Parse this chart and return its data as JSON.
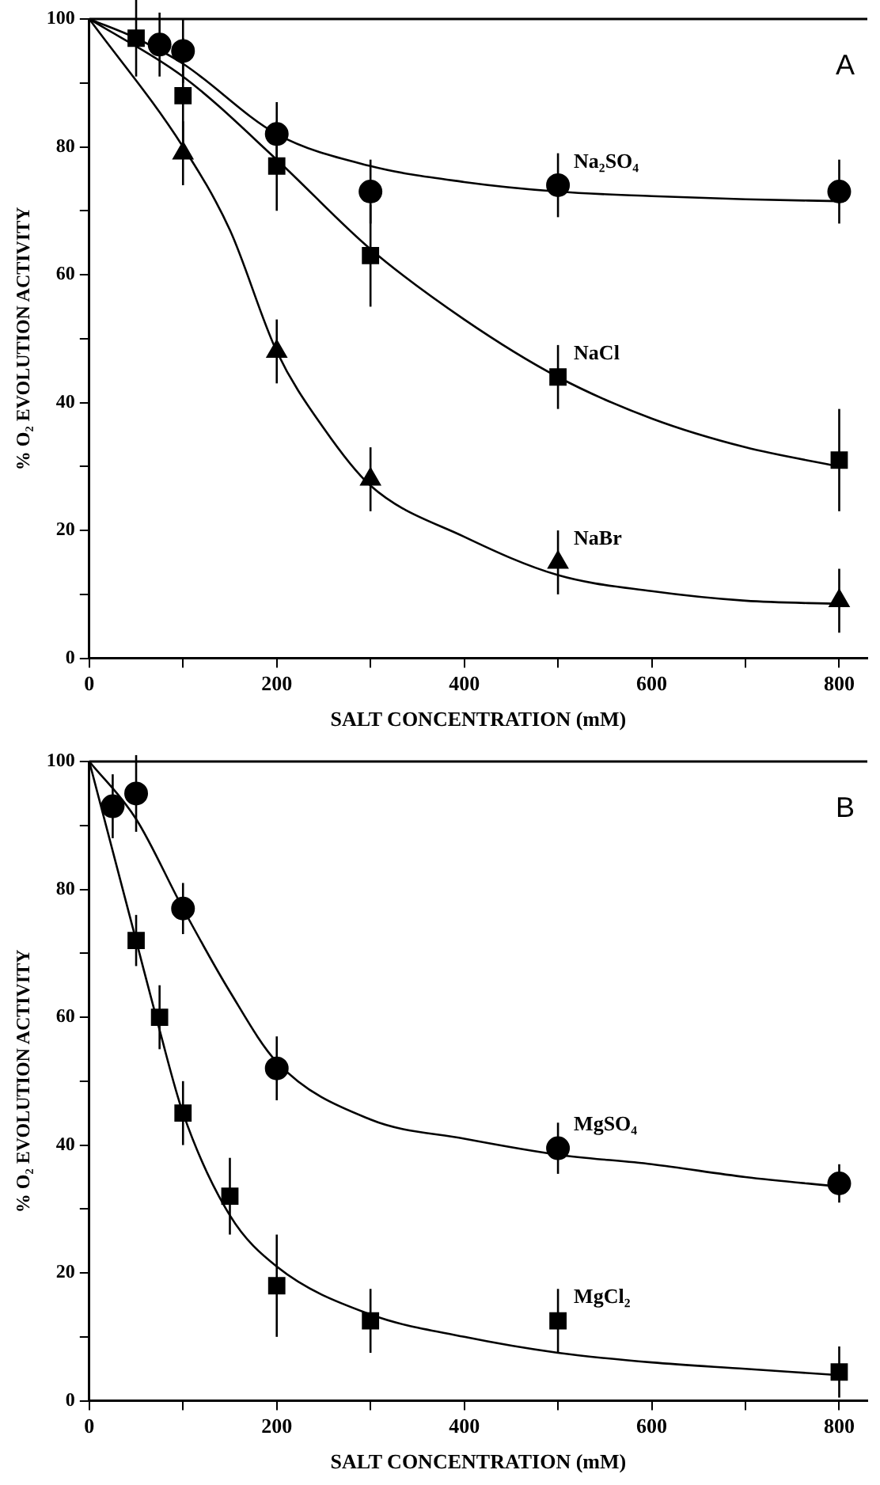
{
  "chart_data": [
    {
      "type": "scatter",
      "annotations": [
        "A"
      ],
      "xlabel": "SALT CONCENTRATION (mM)",
      "ylabel": "% O₂ EVOLUTION ACTIVITY",
      "xlim": [
        0,
        830
      ],
      "ylim": [
        0,
        100
      ],
      "xticks": [
        0,
        {
          "value": 100,
          "label": null
        },
        200,
        {
          "value": 300,
          "label": null
        },
        400,
        {
          "value": 500,
          "label": null
        },
        600,
        {
          "value": 700,
          "label": null
        },
        800
      ],
      "yticks": [
        0,
        {
          "value": 10,
          "label": null
        },
        20,
        {
          "value": 30,
          "label": null
        },
        40,
        {
          "value": 50,
          "label": null
        },
        60,
        {
          "value": 70,
          "label": null
        },
        80,
        {
          "value": 90,
          "label": null
        },
        100
      ],
      "series": [
        {
          "type": "line",
          "color": "#000000",
          "marker": "none",
          "x": [
            0,
            50,
            100,
            200,
            300,
            400,
            500,
            600,
            700,
            800
          ],
          "values": [
            100,
            97,
            93,
            82,
            77,
            74.5,
            73,
            72.3,
            71.8,
            71.5
          ]
        },
        {
          "type": "line",
          "color": "#000000",
          "marker": "none",
          "x": [
            0,
            100,
            200,
            300,
            400,
            500,
            600,
            700,
            800
          ],
          "values": [
            100,
            91,
            78,
            64,
            53,
            44,
            37.5,
            33,
            30
          ]
        },
        {
          "type": "line",
          "color": "#000000",
          "marker": "none",
          "x": [
            0,
            100,
            150,
            200,
            250,
            300,
            400,
            500,
            600,
            700,
            800
          ],
          "values": [
            100,
            80,
            67,
            48,
            36,
            27,
            19,
            13,
            10.5,
            9,
            8.5
          ]
        },
        {
          "type": "scatter",
          "name": "Na₂SO₄",
          "color": "#000000",
          "marker": "circle",
          "x": [
            75,
            100,
            200,
            300,
            500,
            800
          ],
          "values": [
            96,
            95,
            82,
            73,
            74,
            73
          ],
          "errors": [
            5,
            5,
            5,
            5,
            5,
            5
          ]
        },
        {
          "type": "scatter",
          "name": "NaCl",
          "color": "#000000",
          "marker": "square",
          "x": [
            50,
            100,
            200,
            300,
            500,
            800
          ],
          "values": [
            97,
            88,
            77,
            63,
            44,
            31
          ],
          "errors": [
            6,
            9,
            7,
            8,
            5,
            8
          ]
        },
        {
          "type": "scatter",
          "name": "NaBr",
          "color": "#000000",
          "marker": "triangle",
          "x": [
            100,
            200,
            300,
            500,
            800
          ],
          "values": [
            79,
            48,
            28,
            15,
            9
          ],
          "errors": [
            5,
            5,
            5,
            5,
            5
          ]
        }
      ]
    },
    {
      "type": "scatter",
      "annotations": [
        "B"
      ],
      "xlabel": "SALT CONCENTRATION (mM)",
      "ylabel": "% O₂ EVOLUTION ACTIVITY",
      "xlim": [
        0,
        830
      ],
      "ylim": [
        0,
        100
      ],
      "xticks": [
        0,
        {
          "value": 100,
          "label": null
        },
        200,
        {
          "value": 300,
          "label": null
        },
        400,
        {
          "value": 500,
          "label": null
        },
        600,
        {
          "value": 700,
          "label": null
        },
        800
      ],
      "yticks": [
        0,
        {
          "value": 10,
          "label": null
        },
        20,
        {
          "value": 30,
          "label": null
        },
        40,
        {
          "value": 50,
          "label": null
        },
        60,
        {
          "value": 70,
          "label": null
        },
        80,
        {
          "value": 90,
          "label": null
        },
        100
      ],
      "series": [
        {
          "type": "line",
          "color": "#000000",
          "marker": "none",
          "x": [
            0,
            50,
            100,
            150,
            200,
            300,
            400,
            500,
            600,
            700,
            800
          ],
          "values": [
            100,
            91,
            77,
            64,
            53,
            44,
            41,
            38.5,
            37,
            35,
            33.5
          ]
        },
        {
          "type": "line",
          "color": "#000000",
          "marker": "none",
          "x": [
            0,
            50,
            75,
            100,
            150,
            200,
            300,
            400,
            500,
            600,
            700,
            800
          ],
          "values": [
            100,
            72,
            58,
            45,
            29,
            21,
            13.5,
            10,
            7.5,
            6,
            5,
            4
          ]
        },
        {
          "type": "scatter",
          "name": "MgSO₄",
          "color": "#000000",
          "marker": "circle",
          "x": [
            25,
            50,
            100,
            200,
            500,
            800
          ],
          "values": [
            93,
            95,
            77,
            52,
            39.5,
            34
          ],
          "errors": [
            5,
            6,
            4,
            5,
            4,
            3
          ]
        },
        {
          "type": "scatter",
          "name": "MgCl₂",
          "color": "#000000",
          "marker": "square",
          "x": [
            50,
            75,
            100,
            150,
            200,
            300,
            500,
            800
          ],
          "values": [
            72,
            60,
            45,
            32,
            18,
            12.5,
            12.5,
            4.5
          ],
          "errors": [
            4,
            5,
            5,
            6,
            8,
            5,
            5,
            4
          ]
        }
      ]
    }
  ]
}
